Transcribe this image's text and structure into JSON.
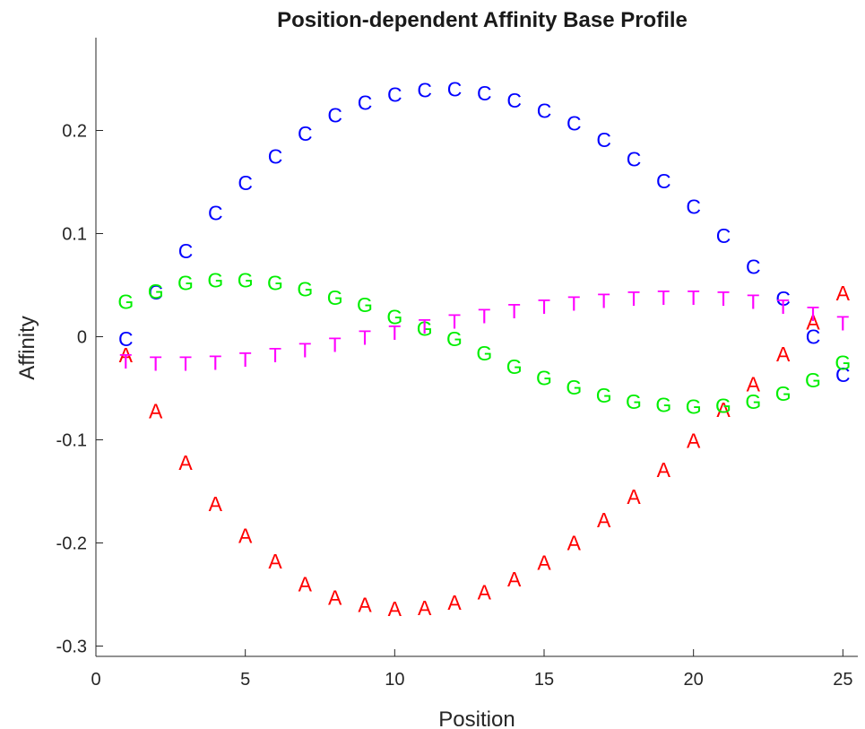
{
  "chart_data": {
    "type": "scatter",
    "title": "Position-dependent Affinity Base Profile",
    "xlabel": "Position",
    "ylabel": "Affinity",
    "xlim": [
      0,
      25.5
    ],
    "ylim": [
      -0.31,
      0.29
    ],
    "xticks": [
      0,
      5,
      10,
      15,
      20,
      25
    ],
    "yticks": [
      0.2,
      0.1,
      0,
      -0.1,
      -0.2,
      -0.3
    ],
    "ytick_labels": [
      "0.2",
      "0.1",
      "0",
      "-0.1",
      "-0.2",
      "-0.3"
    ],
    "grid": false,
    "x": [
      1,
      2,
      3,
      4,
      5,
      6,
      7,
      8,
      9,
      10,
      11,
      12,
      13,
      14,
      15,
      16,
      17,
      18,
      19,
      20,
      21,
      22,
      23,
      24,
      25
    ],
    "series": [
      {
        "name": "A",
        "color": "#ff0000",
        "values": [
          -0.018,
          -0.072,
          -0.122,
          -0.162,
          -0.193,
          -0.218,
          -0.24,
          -0.253,
          -0.26,
          -0.264,
          -0.263,
          -0.258,
          -0.248,
          -0.235,
          -0.219,
          -0.2,
          -0.178,
          -0.155,
          -0.129,
          -0.101,
          -0.071,
          -0.046,
          -0.017,
          0.014,
          0.042
        ]
      },
      {
        "name": "C",
        "color": "#0000ff",
        "values": [
          -0.002,
          0.043,
          0.083,
          0.12,
          0.149,
          0.175,
          0.197,
          0.215,
          0.227,
          0.235,
          0.239,
          0.24,
          0.236,
          0.229,
          0.219,
          0.207,
          0.191,
          0.172,
          0.151,
          0.126,
          0.098,
          0.068,
          0.037,
          0.0,
          -0.037
        ]
      },
      {
        "name": "G",
        "color": "#00ee00",
        "values": [
          0.034,
          0.044,
          0.052,
          0.055,
          0.055,
          0.052,
          0.046,
          0.038,
          0.031,
          0.019,
          0.008,
          -0.002,
          -0.016,
          -0.029,
          -0.04,
          -0.049,
          -0.057,
          -0.063,
          -0.066,
          -0.068,
          -0.067,
          -0.063,
          -0.055,
          -0.042,
          -0.025
        ]
      },
      {
        "name": "T",
        "color": "#ff00ff",
        "values": [
          -0.024,
          -0.026,
          -0.026,
          -0.025,
          -0.022,
          -0.018,
          -0.013,
          -0.008,
          -0.001,
          0.004,
          0.01,
          0.015,
          0.02,
          0.025,
          0.029,
          0.032,
          0.035,
          0.037,
          0.038,
          0.038,
          0.037,
          0.034,
          0.029,
          0.022,
          0.013
        ]
      }
    ]
  }
}
